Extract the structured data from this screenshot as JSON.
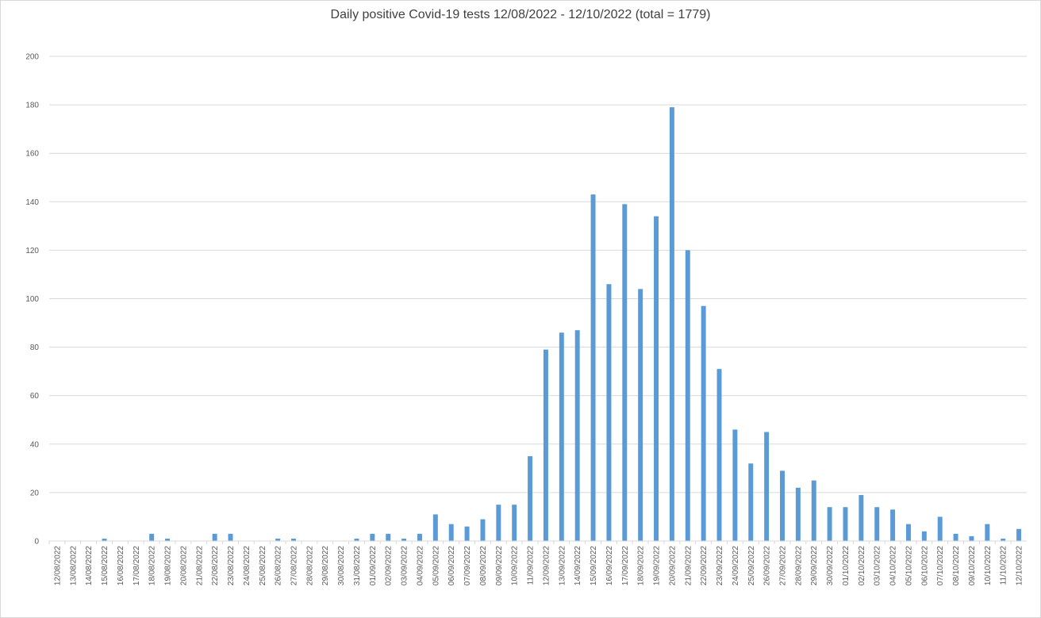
{
  "chart_data": {
    "type": "bar",
    "title": "Daily positive Covid-19 tests 12/08/2022 - 12/10/2022 (total = 1779)",
    "xlabel": "",
    "ylabel": "",
    "ylim": [
      0,
      200
    ],
    "yticks": [
      0,
      20,
      40,
      60,
      80,
      100,
      120,
      140,
      160,
      180,
      200
    ],
    "grid": true,
    "legend": "none",
    "bar_color": "#5b9bd5",
    "grid_color": "#d9d9d9",
    "categories": [
      "12/08/2022",
      "13/08/2022",
      "14/08/2022",
      "15/08/2022",
      "16/08/2022",
      "17/08/2022",
      "18/08/2022",
      "19/08/2022",
      "20/08/2022",
      "21/08/2022",
      "22/08/2022",
      "23/08/2022",
      "24/08/2022",
      "25/08/2022",
      "26/08/2022",
      "27/08/2022",
      "28/08/2022",
      "29/08/2022",
      "30/08/2022",
      "31/08/2022",
      "01/09/2022",
      "02/09/2022",
      "03/09/2022",
      "04/09/2022",
      "05/09/2022",
      "06/09/2022",
      "07/09/2022",
      "08/09/2022",
      "09/09/2022",
      "10/09/2022",
      "11/09/2022",
      "12/09/2022",
      "13/09/2022",
      "14/09/2022",
      "15/09/2022",
      "16/09/2022",
      "17/09/2022",
      "18/09/2022",
      "19/09/2022",
      "20/09/2022",
      "21/09/2022",
      "22/09/2022",
      "23/09/2022",
      "24/09/2022",
      "25/09/2022",
      "26/09/2022",
      "27/09/2022",
      "28/09/2022",
      "29/09/2022",
      "30/09/2022",
      "01/10/2022",
      "02/10/2022",
      "03/10/2022",
      "04/10/2022",
      "05/10/2022",
      "06/10/2022",
      "07/10/2022",
      "08/10/2022",
      "09/10/2022",
      "10/10/2022",
      "11/10/2022",
      "12/10/2022"
    ],
    "values": [
      0,
      0,
      0,
      1,
      0,
      0,
      3,
      1,
      0,
      0,
      3,
      3,
      0,
      0,
      1,
      1,
      0,
      0,
      0,
      1,
      3,
      3,
      1,
      3,
      11,
      7,
      6,
      9,
      15,
      15,
      35,
      79,
      86,
      87,
      143,
      106,
      139,
      104,
      134,
      179,
      120,
      97,
      71,
      46,
      32,
      45,
      29,
      22,
      25,
      14,
      14,
      19,
      14,
      13,
      7,
      4,
      10,
      3,
      2,
      7,
      1,
      5
    ]
  }
}
